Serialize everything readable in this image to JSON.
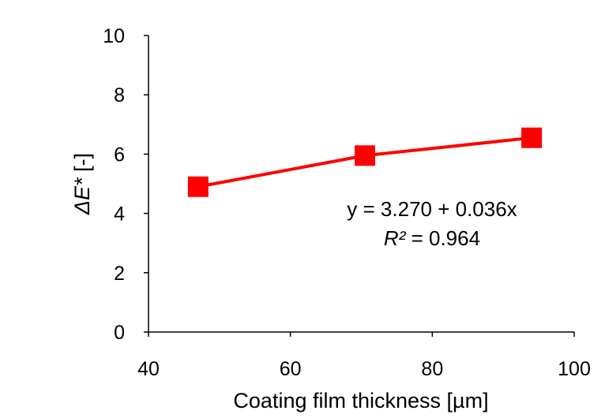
{
  "chart_data": {
    "type": "scatter",
    "x": [
      47,
      70.5,
      94
    ],
    "y": [
      4.9,
      5.95,
      6.55
    ],
    "xlabel": "Coating film thickness [µm]",
    "ylabel_prefix": "ΔE*",
    "ylabel_suffix": " [-]",
    "xlim": [
      40,
      100
    ],
    "ylim": [
      0,
      10
    ],
    "xticks": [
      40,
      60,
      80,
      100
    ],
    "yticks": [
      0,
      2,
      4,
      6,
      8,
      10
    ],
    "grid": false,
    "marker": "square",
    "color": "#ff0000",
    "trendline": {
      "type": "linear",
      "intercept": 3.27,
      "slope": 0.036
    },
    "annotations": {
      "equation": "y = 3.270 + 0.036x",
      "r2_label": "R²",
      "r2_value": " = 0.964"
    }
  }
}
